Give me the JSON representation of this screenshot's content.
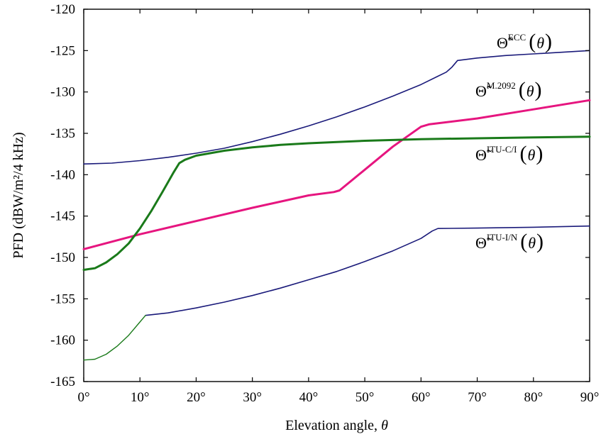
{
  "chart_data": {
    "type": "line",
    "xlabel_text": "Elevation angle, ",
    "xlabel_symbol": "θ",
    "ylabel": "PFD (dBW/m²/4 kHz)",
    "xlim": [
      0,
      90
    ],
    "ylim": [
      -165,
      -120
    ],
    "grid": false,
    "x_ticks": [
      0,
      10,
      20,
      30,
      40,
      50,
      60,
      70,
      80,
      90
    ],
    "x_tick_labels": [
      "0°",
      "10°",
      "20°",
      "30°",
      "40°",
      "50°",
      "60°",
      "70°",
      "80°",
      "90°"
    ],
    "y_ticks": [
      -165,
      -160,
      -155,
      -150,
      -145,
      -140,
      -135,
      -130,
      -125,
      -120
    ],
    "y_tick_labels": [
      "-165",
      "-160",
      "-155",
      "-150",
      "-145",
      "-140",
      "-135",
      "-130",
      "-125",
      "-120"
    ],
    "series": [
      {
        "name": "Θ̃ECC(θ)",
        "base": "Θ̃",
        "sup": "ECC",
        "arg": "θ",
        "color": "#1a1a7a",
        "width": 1.6,
        "points": [
          [
            0,
            -138.7
          ],
          [
            5,
            -138.6
          ],
          [
            10,
            -138.3
          ],
          [
            15,
            -137.9
          ],
          [
            20,
            -137.4
          ],
          [
            25,
            -136.8
          ],
          [
            30,
            -136.0
          ],
          [
            35,
            -135.1
          ],
          [
            40,
            -134.1
          ],
          [
            45,
            -133.0
          ],
          [
            50,
            -131.8
          ],
          [
            55,
            -130.5
          ],
          [
            60,
            -129.1
          ],
          [
            63,
            -128.1
          ],
          [
            64.5,
            -127.6
          ],
          [
            65.5,
            -127.0
          ],
          [
            66.5,
            -126.2
          ],
          [
            70,
            -125.9
          ],
          [
            75,
            -125.6
          ],
          [
            80,
            -125.4
          ],
          [
            85,
            -125.2
          ],
          [
            90,
            -125.0
          ]
        ]
      },
      {
        "name": "Θ̃M.2092(θ)",
        "base": "Θ̃",
        "sup": "M.2092",
        "arg": "θ",
        "color": "#e6157f",
        "width": 3,
        "points": [
          [
            0,
            -149.0
          ],
          [
            10,
            -147.2
          ],
          [
            20,
            -145.6
          ],
          [
            30,
            -144.0
          ],
          [
            40,
            -142.5
          ],
          [
            44.5,
            -142.1
          ],
          [
            45.5,
            -141.9
          ],
          [
            50,
            -139.4
          ],
          [
            55,
            -136.6
          ],
          [
            60,
            -134.2
          ],
          [
            61.5,
            -133.9
          ],
          [
            70,
            -133.2
          ],
          [
            80,
            -132.1
          ],
          [
            90,
            -131.0
          ]
        ]
      },
      {
        "name": "Θ̃ITU-C/I(θ)",
        "base": "Θ̃",
        "sup": "ITU-C/I",
        "arg": "θ",
        "color": "#1a7a1a",
        "width": 3,
        "points": [
          [
            0,
            -151.5
          ],
          [
            2,
            -151.3
          ],
          [
            4,
            -150.6
          ],
          [
            6,
            -149.6
          ],
          [
            8,
            -148.3
          ],
          [
            10,
            -146.5
          ],
          [
            12,
            -144.4
          ],
          [
            14,
            -142.1
          ],
          [
            16,
            -139.7
          ],
          [
            17,
            -138.6
          ],
          [
            18,
            -138.2
          ],
          [
            20,
            -137.7
          ],
          [
            25,
            -137.1
          ],
          [
            30,
            -136.7
          ],
          [
            35,
            -136.4
          ],
          [
            40,
            -136.2
          ],
          [
            50,
            -135.9
          ],
          [
            60,
            -135.7
          ],
          [
            70,
            -135.6
          ],
          [
            80,
            -135.5
          ],
          [
            90,
            -135.4
          ]
        ]
      },
      {
        "name": "Θ̃ITU-I/N(θ)",
        "base": "Θ̃",
        "sup": "ITU-I/N",
        "arg": "θ",
        "color": "#1a1a7a",
        "width": 1.6,
        "points": [
          [
            11,
            -157.0
          ],
          [
            15,
            -156.7
          ],
          [
            20,
            -156.1
          ],
          [
            25,
            -155.4
          ],
          [
            30,
            -154.6
          ],
          [
            35,
            -153.7
          ],
          [
            40,
            -152.7
          ],
          [
            45,
            -151.7
          ],
          [
            50,
            -150.5
          ],
          [
            55,
            -149.2
          ],
          [
            60,
            -147.7
          ],
          [
            62,
            -146.8
          ],
          [
            63,
            -146.5
          ],
          [
            70,
            -146.45
          ],
          [
            80,
            -146.35
          ],
          [
            90,
            -146.2
          ]
        ]
      },
      {
        "name": "",
        "base": "",
        "sup": "",
        "arg": "",
        "color": "#1a7a1a",
        "width": 1.4,
        "points": [
          [
            0,
            -162.4
          ],
          [
            2,
            -162.3
          ],
          [
            4,
            -161.7
          ],
          [
            6,
            -160.7
          ],
          [
            8,
            -159.4
          ],
          [
            10,
            -157.8
          ],
          [
            11,
            -157.0
          ]
        ]
      }
    ]
  }
}
